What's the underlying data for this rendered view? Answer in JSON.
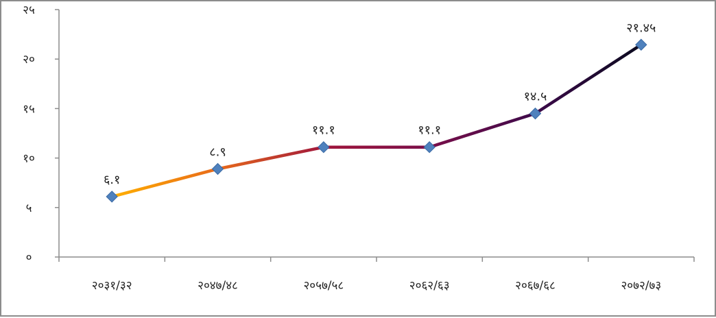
{
  "chart_data": {
    "type": "line",
    "categories": [
      "२०३१/३२",
      "२०४७/४८",
      "२०५७/५८",
      "२०६२/६३",
      "२०६७/६८",
      "२०७२/७३"
    ],
    "values": [
      6.1,
      8.9,
      11.1,
      11.1,
      14.5,
      21.45
    ],
    "data_labels": [
      "६.१",
      "८.९",
      "११.१",
      "११.१",
      "१४.५",
      "२१.४५"
    ],
    "y_ticks": [
      "०",
      "५",
      "१०",
      "१५",
      "२०",
      "२५"
    ],
    "ylim": [
      0,
      25
    ],
    "y_step": 5,
    "grid": false,
    "legend": "none",
    "marker": "diamond",
    "colors": {
      "marker": "#4f81bd",
      "line_gradient": [
        "#ffb000",
        "#e86a1a",
        "#a0163c",
        "#7a0f4a",
        "#3d0a4a",
        "#0a0a1e"
      ],
      "axis": "#8c8c8c",
      "border": "#8c8c8c"
    }
  }
}
